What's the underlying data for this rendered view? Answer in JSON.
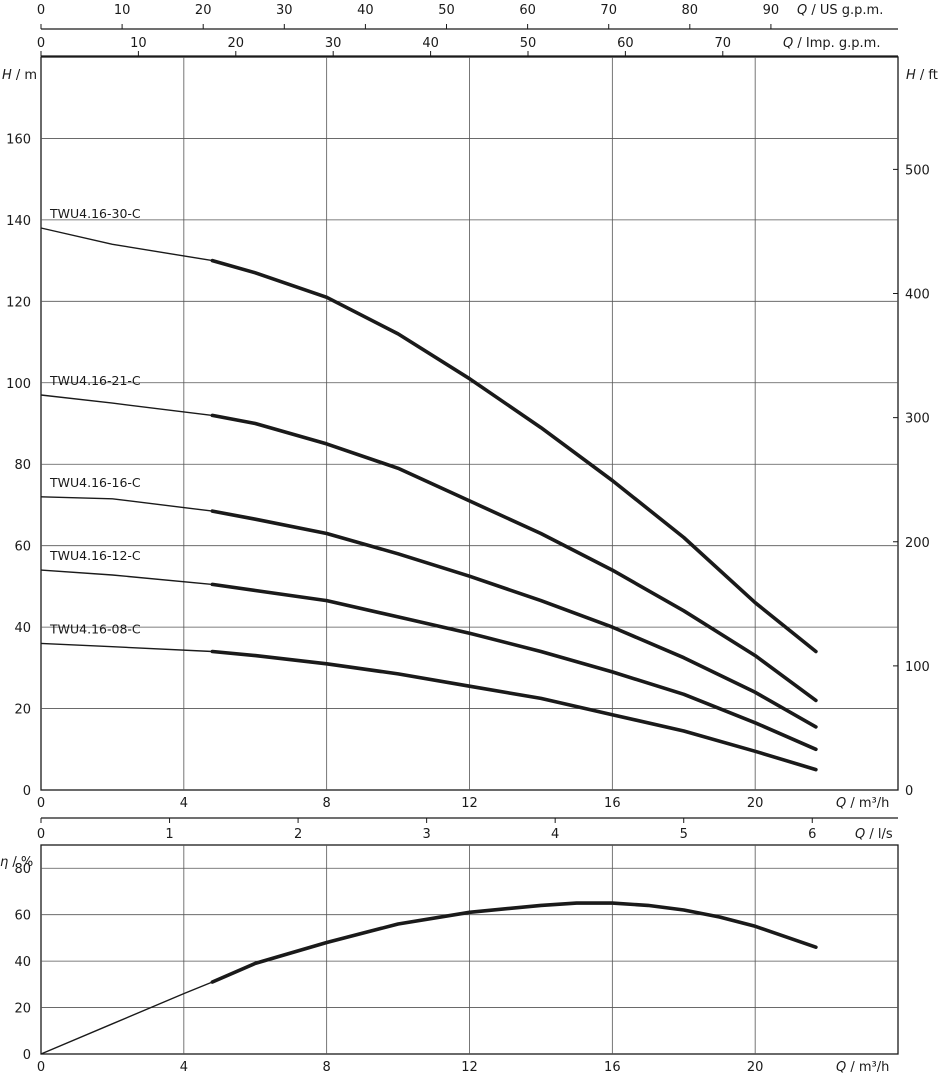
{
  "colors": {
    "curve": "#1a1a1a",
    "grid": "#555555",
    "text": "#1a1a1a",
    "background": "#ffffff"
  },
  "chart_data": [
    {
      "type": "line",
      "name": "head-curves",
      "xlabel": "Q / m³/h",
      "ylabel": "H / m",
      "y2label": "H / ft",
      "xlim": [
        0,
        24
      ],
      "ylim": [
        0,
        180
      ],
      "y2lim": [
        0,
        590.55
      ],
      "x_ticks": [
        0,
        4,
        8,
        12,
        16,
        20
      ],
      "y_ticks": [
        0,
        20,
        40,
        60,
        80,
        100,
        120,
        140,
        160
      ],
      "y2_ticks": [
        0,
        100,
        200,
        300,
        400,
        500
      ],
      "grid": true,
      "operating_range_start": 4.8,
      "top_axis_1": {
        "label": "Q / US g.p.m.",
        "max": 105.67,
        "ticks": [
          0,
          10,
          20,
          30,
          40,
          50,
          60,
          70,
          80,
          90
        ]
      },
      "top_axis_2": {
        "label": "Q / Imp. g.p.m.",
        "max": 87.99,
        "ticks": [
          0,
          10,
          20,
          30,
          40,
          50,
          60,
          70
        ]
      },
      "series": [
        {
          "name": "TWU4.16-30-C",
          "x": [
            0,
            2,
            4.8,
            6,
            8,
            10,
            12,
            14,
            16,
            18,
            20,
            21.7
          ],
          "y": [
            138,
            134,
            130,
            127,
            121,
            112,
            101,
            89,
            76,
            62,
            46,
            34
          ]
        },
        {
          "name": "TWU4.16-21-C",
          "x": [
            0,
            2,
            4.8,
            6,
            8,
            10,
            12,
            14,
            16,
            18,
            20,
            21.7
          ],
          "y": [
            97,
            95,
            92,
            90,
            85,
            79,
            71,
            63,
            54,
            44,
            33,
            22
          ]
        },
        {
          "name": "TWU4.16-16-C",
          "x": [
            0,
            2,
            4.8,
            6,
            8,
            10,
            12,
            14,
            16,
            18,
            20,
            21.7
          ],
          "y": [
            72,
            71.5,
            68.5,
            66.5,
            63,
            58,
            52.5,
            46.5,
            40,
            32.5,
            24,
            15.5
          ]
        },
        {
          "name": "TWU4.16-12-C",
          "x": [
            0,
            2,
            4.8,
            6,
            8,
            10,
            12,
            14,
            16,
            18,
            20,
            21.7
          ],
          "y": [
            54,
            52.8,
            50.5,
            49,
            46.5,
            42.5,
            38.5,
            34,
            29,
            23.5,
            16.5,
            10
          ]
        },
        {
          "name": "TWU4.16-08-C",
          "x": [
            0,
            2,
            4.8,
            6,
            8,
            10,
            12,
            14,
            16,
            18,
            20,
            21.7
          ],
          "y": [
            36,
            35.2,
            34,
            33,
            31,
            28.5,
            25.5,
            22.5,
            18.5,
            14.5,
            9.5,
            5
          ]
        }
      ]
    },
    {
      "type": "line",
      "name": "efficiency-curve",
      "xlabel": "Q / m³/h",
      "ylabel": "η / %",
      "xlim": [
        0,
        24
      ],
      "ylim": [
        0,
        90
      ],
      "x_ticks": [
        0,
        4,
        8,
        12,
        16,
        20
      ],
      "y_ticks": [
        0,
        20,
        40,
        60,
        80
      ],
      "grid": true,
      "operating_range_start": 4.8,
      "top_axis": {
        "label": "Q / l/s",
        "max": 6.667,
        "ticks": [
          0,
          1,
          2,
          3,
          4,
          5,
          6
        ]
      },
      "series": [
        {
          "x": [
            0,
            2,
            4,
            4.8,
            6,
            8,
            10,
            12,
            14,
            15,
            16,
            17,
            18,
            19,
            20,
            21.7
          ],
          "y": [
            0,
            13,
            26,
            31,
            39,
            48,
            56,
            61,
            64,
            65,
            65,
            64,
            62,
            59,
            55,
            46
          ]
        }
      ]
    }
  ]
}
